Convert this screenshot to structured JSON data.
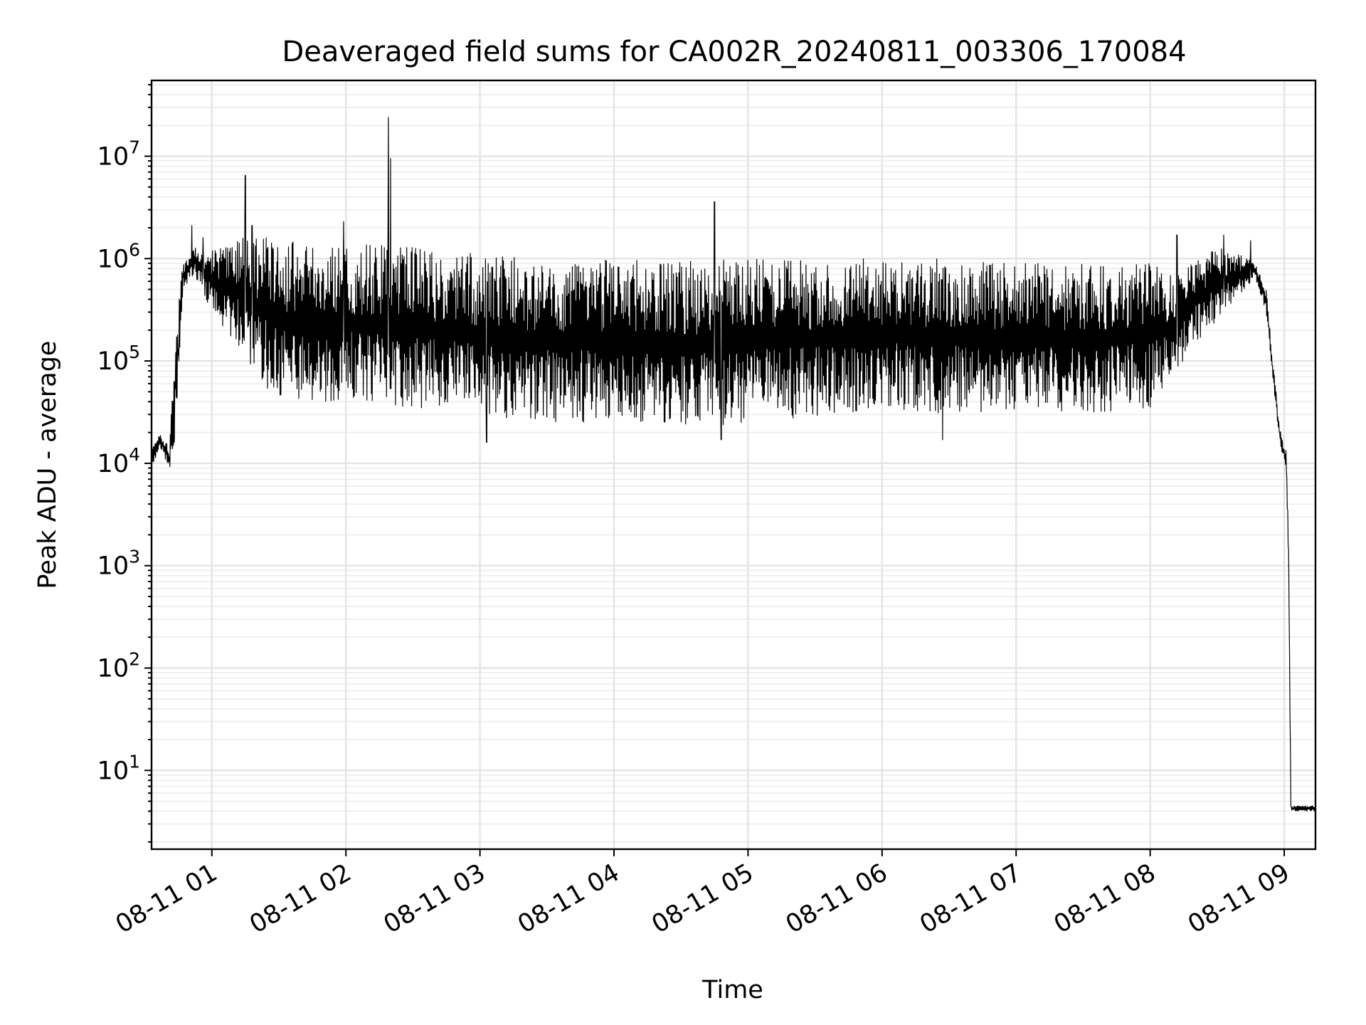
{
  "chart_data": {
    "type": "line",
    "title": "Deaveraged field sums for CA002R_20240811_003306_170084",
    "xlabel": "Time",
    "ylabel": "Peak ADU - average",
    "y_scale": "log",
    "ylim": [
      1.7,
      55000000
    ],
    "xlim": [
      "2024-08-11 00:33:00",
      "2024-08-11 09:14:00"
    ],
    "grid": "major and minor",
    "line_color": "#000000",
    "x_ticks": [
      {
        "t": "2024-08-11 01:00:00",
        "label": "08-11 01"
      },
      {
        "t": "2024-08-11 02:00:00",
        "label": "08-11 02"
      },
      {
        "t": "2024-08-11 03:00:00",
        "label": "08-11 03"
      },
      {
        "t": "2024-08-11 04:00:00",
        "label": "08-11 04"
      },
      {
        "t": "2024-08-11 05:00:00",
        "label": "08-11 05"
      },
      {
        "t": "2024-08-11 06:00:00",
        "label": "08-11 06"
      },
      {
        "t": "2024-08-11 07:00:00",
        "label": "08-11 07"
      },
      {
        "t": "2024-08-11 08:00:00",
        "label": "08-11 08"
      },
      {
        "t": "2024-08-11 09:00:00",
        "label": "08-11 09"
      }
    ],
    "y_ticks": [
      {
        "value": 10,
        "base": "10",
        "exp": "1"
      },
      {
        "value": 100,
        "base": "10",
        "exp": "2"
      },
      {
        "value": 1000,
        "base": "10",
        "exp": "3"
      },
      {
        "value": 10000,
        "base": "10",
        "exp": "4"
      },
      {
        "value": 100000,
        "base": "10",
        "exp": "5"
      },
      {
        "value": 1000000,
        "base": "10",
        "exp": "6"
      },
      {
        "value": 10000000,
        "base": "10",
        "exp": "7"
      }
    ],
    "envelope": [
      {
        "t": "2024-08-11 00:33:00",
        "hi": 15000,
        "lo": 9000
      },
      {
        "t": "2024-08-11 00:37:00",
        "hi": 20000,
        "lo": 14000
      },
      {
        "t": "2024-08-11 00:41:00",
        "hi": 14000,
        "lo": 8500
      },
      {
        "t": "2024-08-11 00:44:00",
        "hi": 300000,
        "lo": 20000
      },
      {
        "t": "2024-08-11 00:47:00",
        "hi": 900000,
        "lo": 500000
      },
      {
        "t": "2024-08-11 00:52:00",
        "hi": 1300000,
        "lo": 700000
      },
      {
        "t": "2024-08-11 01:00:00",
        "hi": 1200000,
        "lo": 300000
      },
      {
        "t": "2024-08-11 01:10:00",
        "hi": 1600000,
        "lo": 150000
      },
      {
        "t": "2024-08-11 01:20:00",
        "hi": 1700000,
        "lo": 70000
      },
      {
        "t": "2024-08-11 01:30:00",
        "hi": 1500000,
        "lo": 40000
      },
      {
        "t": "2024-08-11 02:00:00",
        "hi": 1400000,
        "lo": 40000
      },
      {
        "t": "2024-08-11 02:30:00",
        "hi": 1300000,
        "lo": 35000
      },
      {
        "t": "2024-08-11 03:00:00",
        "hi": 1100000,
        "lo": 28000
      },
      {
        "t": "2024-08-11 03:30:00",
        "hi": 1000000,
        "lo": 25000
      },
      {
        "t": "2024-08-11 04:00:00",
        "hi": 1000000,
        "lo": 25000
      },
      {
        "t": "2024-08-11 04:30:00",
        "hi": 950000,
        "lo": 22000
      },
      {
        "t": "2024-08-11 05:00:00",
        "hi": 1000000,
        "lo": 25000
      },
      {
        "t": "2024-08-11 05:30:00",
        "hi": 1000000,
        "lo": 28000
      },
      {
        "t": "2024-08-11 06:00:00",
        "hi": 1000000,
        "lo": 35000
      },
      {
        "t": "2024-08-11 06:30:00",
        "hi": 1000000,
        "lo": 30000
      },
      {
        "t": "2024-08-11 07:00:00",
        "hi": 900000,
        "lo": 32000
      },
      {
        "t": "2024-08-11 07:30:00",
        "hi": 900000,
        "lo": 30000
      },
      {
        "t": "2024-08-11 08:00:00",
        "hi": 900000,
        "lo": 35000
      },
      {
        "t": "2024-08-11 08:10:00",
        "hi": 700000,
        "lo": 70000
      },
      {
        "t": "2024-08-11 08:20:00",
        "hi": 1000000,
        "lo": 150000
      },
      {
        "t": "2024-08-11 08:30:00",
        "hi": 1300000,
        "lo": 250000
      },
      {
        "t": "2024-08-11 08:40:00",
        "hi": 1100000,
        "lo": 450000
      },
      {
        "t": "2024-08-11 08:47:00",
        "hi": 900000,
        "lo": 650000
      },
      {
        "t": "2024-08-11 08:52:00",
        "hi": 500000,
        "lo": 300000
      },
      {
        "t": "2024-08-11 08:55:00",
        "hi": 100000,
        "lo": 60000
      },
      {
        "t": "2024-08-11 08:58:00",
        "hi": 22000,
        "lo": 16000
      },
      {
        "t": "2024-08-11 09:01:00",
        "hi": 13000,
        "lo": 8000
      },
      {
        "t": "2024-08-11 09:02:00",
        "hi": 1500,
        "lo": 800
      },
      {
        "t": "2024-08-11 09:03:00",
        "hi": 4.5,
        "lo": 4.0
      },
      {
        "t": "2024-08-11 09:14:00",
        "hi": 4.5,
        "lo": 4.0
      }
    ],
    "spikes": [
      {
        "t": "2024-08-11 00:51:00",
        "value": 2100000
      },
      {
        "t": "2024-08-11 00:56:00",
        "value": 1600000
      },
      {
        "t": "2024-08-11 01:15:00",
        "value": 6500000
      },
      {
        "t": "2024-08-11 01:18:00",
        "value": 2100000
      },
      {
        "t": "2024-08-11 01:59:00",
        "value": 2300000
      },
      {
        "t": "2024-08-11 02:19:00",
        "value": 24000000
      },
      {
        "t": "2024-08-11 02:20:00",
        "value": 9500000
      },
      {
        "t": "2024-08-11 04:45:00",
        "value": 3600000
      },
      {
        "t": "2024-08-11 08:12:00",
        "value": 1700000
      },
      {
        "t": "2024-08-11 08:33:00",
        "value": 1700000
      },
      {
        "t": "2024-08-11 08:45:00",
        "value": 1500000
      }
    ],
    "dips": [
      {
        "t": "2024-08-11 00:45:00",
        "value": 130000
      },
      {
        "t": "2024-08-11 03:03:00",
        "value": 16000
      },
      {
        "t": "2024-08-11 04:48:00",
        "value": 17000
      },
      {
        "t": "2024-08-11 06:27:00",
        "value": 17000
      }
    ]
  }
}
